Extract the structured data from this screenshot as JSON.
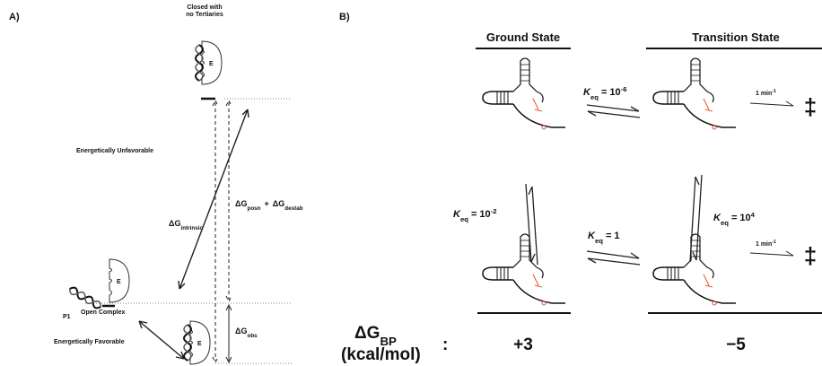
{
  "panel_a": {
    "label": "A)",
    "closed_title": [
      "Closed with",
      "no Tertiaries"
    ],
    "unfavorable": "Energetically Unfavorable",
    "favorable": "Energetically Favorable",
    "p1": "P1",
    "open_complex": "Open Complex",
    "enzyme_label": "E",
    "dg_intrinsic": {
      "symbol": "ΔG",
      "sub": "intrinsic"
    },
    "dg_posn_destab": {
      "symbol1": "ΔG",
      "sub1": "posn",
      "plus": "+",
      "symbol2": "ΔG",
      "sub2": "destab"
    },
    "dg_obs": {
      "symbol": "ΔG",
      "sub": "obs"
    }
  },
  "panel_b": {
    "label": "B)",
    "ground_state": "Ground State",
    "transition_state": "Transition State",
    "equilibria": [
      {
        "k": "K",
        "sub": "eq",
        "rel": "= 10",
        "sup": "-6"
      },
      {
        "k": "K",
        "sub": "eq",
        "rel": "= 10",
        "sup": "-2"
      },
      {
        "k": "K",
        "sub": "eq",
        "rel": "= 10",
        "sup": "4"
      },
      {
        "k": "K",
        "sub": "eq",
        "rel": "= 1"
      }
    ],
    "rates": [
      {
        "base": "1 min",
        "sup": "-1"
      },
      {
        "base": "1 min",
        "sup": "-1"
      }
    ],
    "ts_symbols": [
      "‡",
      "‡"
    ],
    "dg_bp": {
      "symbol": "ΔG",
      "sub": "BP"
    },
    "units": "(kcal/mol)",
    "colon": ":",
    "values": [
      "+3",
      "−5"
    ]
  }
}
